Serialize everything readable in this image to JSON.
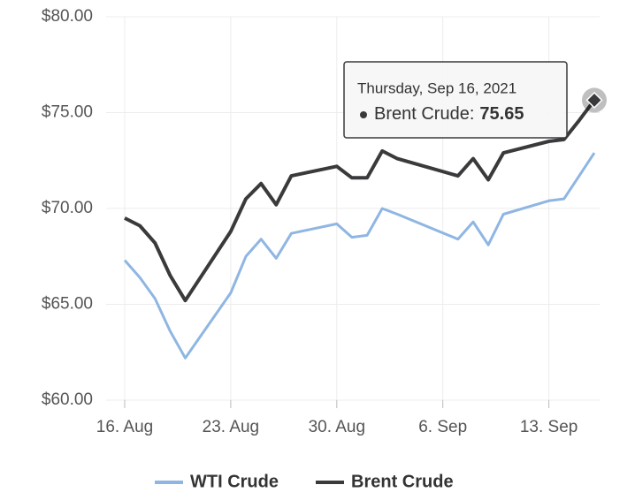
{
  "chart_data": {
    "type": "line",
    "x": [
      "08-16",
      "08-17",
      "08-18",
      "08-19",
      "08-20",
      "08-23",
      "08-24",
      "08-25",
      "08-26",
      "08-27",
      "08-30",
      "08-31",
      "09-01",
      "09-02",
      "09-03",
      "09-07",
      "09-08",
      "09-09",
      "09-10",
      "09-13",
      "09-14",
      "09-15",
      "09-16"
    ],
    "series": [
      {
        "name": "WTI Crude",
        "color": "#8fb6e3",
        "values": [
          67.3,
          66.4,
          65.3,
          63.6,
          62.2,
          65.6,
          67.5,
          68.4,
          67.4,
          68.7,
          69.2,
          68.5,
          68.6,
          70.0,
          69.7,
          68.4,
          69.3,
          68.1,
          69.7,
          70.4,
          70.5,
          71.7,
          72.9
        ]
      },
      {
        "name": "Brent Crude",
        "color": "#3a3a3c",
        "values": [
          69.5,
          69.1,
          68.2,
          66.5,
          65.2,
          68.8,
          70.5,
          71.3,
          70.2,
          71.7,
          72.2,
          71.6,
          71.6,
          73.0,
          72.6,
          71.7,
          72.6,
          71.5,
          72.9,
          73.5,
          73.6,
          74.6,
          75.65
        ]
      }
    ],
    "xlim": [
      "08-16",
      "09-16"
    ],
    "xticks": [
      {
        "value": "08-16",
        "label": "16. Aug"
      },
      {
        "value": "08-23",
        "label": "23. Aug"
      },
      {
        "value": "08-30",
        "label": "30. Aug"
      },
      {
        "value": "09-06",
        "label": "6. Sep"
      },
      {
        "value": "09-13",
        "label": "13. Sep"
      }
    ],
    "ylim": [
      60,
      80
    ],
    "yticks": [
      {
        "value": 60,
        "label": "$60.00"
      },
      {
        "value": 65,
        "label": "$65.00"
      },
      {
        "value": 70,
        "label": "$70.00"
      },
      {
        "value": 75,
        "label": "$75.00"
      },
      {
        "value": 80,
        "label": "$80.00"
      }
    ],
    "grid": true,
    "legend": "bottom",
    "tooltip": {
      "header": "Thursday, Sep 16, 2021",
      "label": "Brent Crude:"
    }
  }
}
